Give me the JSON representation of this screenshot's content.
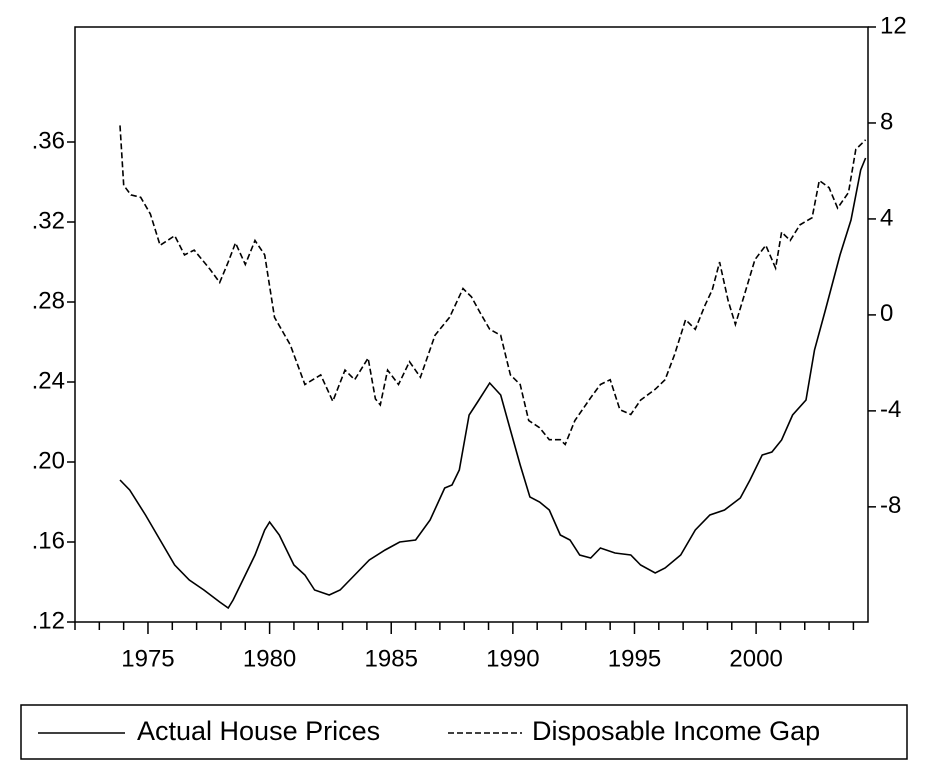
{
  "chart_data": {
    "type": "line",
    "xlim": [
      1972,
      2004.6
    ],
    "xticks": [
      1975,
      1980,
      1985,
      1990,
      1995,
      2000
    ],
    "xminorticks": [
      1972,
      1973,
      1974,
      1976,
      1977,
      1978,
      1979,
      1981,
      1982,
      1983,
      1984,
      1986,
      1987,
      1988,
      1989,
      1991,
      1992,
      1993,
      1994,
      1996,
      1997,
      1998,
      1999,
      2001,
      2002,
      2003,
      2004
    ],
    "ylim": [
      0.12,
      0.4175
    ],
    "yticks": [
      {
        "value": 0.12,
        "label": ".12"
      },
      {
        "value": 0.16,
        "label": ".16"
      },
      {
        "value": 0.2,
        "label": ".20"
      },
      {
        "value": 0.24,
        "label": ".24"
      },
      {
        "value": 0.28,
        "label": ".28"
      },
      {
        "value": 0.32,
        "label": ".32"
      },
      {
        "value": 0.36,
        "label": ".36"
      }
    ],
    "y2lim": [
      -12.8,
      12
    ],
    "y2ticks": [
      -8,
      -4,
      0,
      4,
      8,
      12
    ],
    "legend": "bottom",
    "series": [
      {
        "name": "Actual House Prices",
        "color": "#000000",
        "dash": "solid",
        "x": [
          1973.85,
          1974.25,
          1974.9,
          1975.5,
          1976.1,
          1976.7,
          1977.3,
          1977.95,
          1978.3,
          1978.5,
          1979.0,
          1979.4,
          1979.8,
          1980.0,
          1980.4,
          1981.0,
          1981.45,
          1981.85,
          1982.45,
          1982.9,
          1983.5,
          1984.1,
          1984.75,
          1985.35,
          1986.0,
          1986.6,
          1987.2,
          1987.5,
          1987.8,
          1988.2,
          1988.55,
          1989.05,
          1989.5,
          1989.9,
          1990.3,
          1990.7,
          1991.1,
          1991.5,
          1991.95,
          1992.35,
          1992.75,
          1993.2,
          1993.6,
          1994.2,
          1994.85,
          1995.25,
          1995.85,
          1996.26,
          1996.9,
          1997.5,
          1998.1,
          1998.7,
          1999.35,
          1999.75,
          2000.25,
          2000.65,
          2001.05,
          2001.5,
          2002.05,
          2002.4,
          2002.85,
          2003.45,
          2003.9,
          2004.3,
          2004.5
        ],
        "values": [
          0.191,
          0.186,
          0.1735,
          0.161,
          0.1485,
          0.141,
          0.136,
          0.13,
          0.127,
          0.131,
          0.1435,
          0.1535,
          0.166,
          0.17,
          0.1635,
          0.1485,
          0.1435,
          0.136,
          0.1335,
          0.136,
          0.1435,
          0.151,
          0.156,
          0.16,
          0.161,
          0.171,
          0.187,
          0.1885,
          0.196,
          0.2235,
          0.23,
          0.2395,
          0.2335,
          0.216,
          0.1985,
          0.1825,
          0.18,
          0.176,
          0.1635,
          0.161,
          0.1535,
          0.152,
          0.157,
          0.1545,
          0.1535,
          0.1485,
          0.1445,
          0.147,
          0.1535,
          0.166,
          0.1735,
          0.176,
          0.182,
          0.191,
          0.2035,
          0.205,
          0.211,
          0.2235,
          0.231,
          0.256,
          0.276,
          0.3035,
          0.321,
          0.346,
          0.352
        ]
      },
      {
        "name": "Disposable Income Gap",
        "color": "#000000",
        "dash": "dashed",
        "axis": "y2",
        "x": [
          1973.85,
          1974.0,
          1974.3,
          1974.7,
          1975.1,
          1975.5,
          1976.1,
          1976.5,
          1976.9,
          1977.55,
          1977.95,
          1978.3,
          1978.6,
          1979.0,
          1979.4,
          1979.8,
          1980.2,
          1980.85,
          1981.45,
          1982.1,
          1982.6,
          1983.1,
          1983.5,
          1984.05,
          1984.35,
          1984.55,
          1984.85,
          1985.3,
          1985.75,
          1986.2,
          1986.8,
          1987.4,
          1987.95,
          1988.3,
          1988.65,
          1989.05,
          1989.5,
          1989.9,
          1990.3,
          1990.65,
          1991.1,
          1991.5,
          1991.95,
          1992.15,
          1992.55,
          1993.2,
          1993.6,
          1994.0,
          1994.4,
          1994.85,
          1995.25,
          1995.85,
          1996.26,
          1996.65,
          1997.1,
          1997.5,
          1997.9,
          1998.2,
          1998.5,
          1998.85,
          1999.15,
          1999.55,
          1999.95,
          2000.4,
          2000.8,
          2001.05,
          2001.4,
          2001.8,
          2002.3,
          2002.6,
          2003.0,
          2003.35,
          2003.8,
          2004.1,
          2004.5
        ],
        "values": [
          7.9,
          5.4,
          5.0,
          4.9,
          4.2,
          2.9,
          3.3,
          2.5,
          2.7,
          1.9,
          1.35,
          2.2,
          3.0,
          2.1,
          3.1,
          2.5,
          -0.1,
          -1.25,
          -2.9,
          -2.5,
          -3.6,
          -2.3,
          -2.7,
          -1.8,
          -3.5,
          -3.75,
          -2.3,
          -2.9,
          -1.95,
          -2.6,
          -0.85,
          -0.1,
          1.1,
          0.75,
          0.1,
          -0.6,
          -0.85,
          -2.5,
          -2.9,
          -4.4,
          -4.7,
          -5.2,
          -5.2,
          -5.4,
          -4.4,
          -3.45,
          -2.9,
          -2.7,
          -3.95,
          -4.15,
          -3.55,
          -3.1,
          -2.7,
          -1.65,
          -0.2,
          -0.6,
          0.4,
          1.05,
          2.2,
          0.6,
          -0.4,
          0.95,
          2.3,
          2.9,
          1.95,
          3.45,
          3.1,
          3.75,
          4.05,
          5.6,
          5.3,
          4.45,
          5.1,
          6.9,
          7.3
        ]
      }
    ]
  }
}
